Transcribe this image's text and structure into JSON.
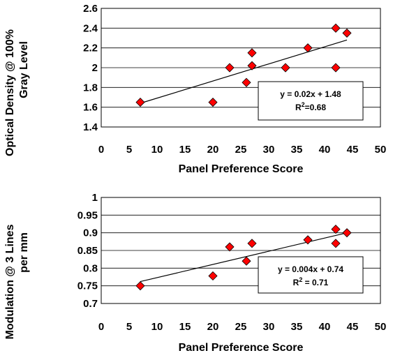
{
  "chart_data": [
    {
      "type": "scatter",
      "xlabel": "Panel Preference Score",
      "ylabel_lines": [
        "Optical Density @ 100%",
        "Gray Level"
      ],
      "xlim": [
        0,
        50
      ],
      "ylim": [
        1.4,
        2.6
      ],
      "x_ticks": [
        "0",
        "5",
        "10",
        "15",
        "20",
        "25",
        "30",
        "35",
        "40",
        "45",
        "50"
      ],
      "y_ticks": [
        "1.4",
        "1.6",
        "1.8",
        "2",
        "2.2",
        "2.4",
        "2.6"
      ],
      "grid": "horizontal",
      "series": [
        {
          "marker": "diamond",
          "color": "#ff0000",
          "points": [
            {
              "x": 7,
              "y": 1.65
            },
            {
              "x": 20,
              "y": 1.65
            },
            {
              "x": 23,
              "y": 2.0
            },
            {
              "x": 26,
              "y": 1.85
            },
            {
              "x": 27,
              "y": 2.15
            },
            {
              "x": 27,
              "y": 2.02
            },
            {
              "x": 33,
              "y": 2.0
            },
            {
              "x": 37,
              "y": 2.2
            },
            {
              "x": 42,
              "y": 2.4
            },
            {
              "x": 42,
              "y": 2.0
            },
            {
              "x": 44,
              "y": 2.35
            }
          ]
        }
      ],
      "trendline": {
        "x": [
          7,
          44
        ],
        "y": [
          1.64,
          2.28
        ]
      },
      "annotation": {
        "equation": "y = 0.02x + 1.48",
        "r2_prefix": "R",
        "r2_sup": "2",
        "r2_value": "=0.68"
      }
    },
    {
      "type": "scatter",
      "xlabel": "Panel Preference Score",
      "ylabel_lines": [
        "Modulation @ 3 Lines",
        "per mm"
      ],
      "xlim": [
        0,
        50
      ],
      "ylim": [
        0.7,
        1.0
      ],
      "x_ticks": [
        "0",
        "5",
        "10",
        "15",
        "20",
        "25",
        "30",
        "35",
        "40",
        "45",
        "50"
      ],
      "y_ticks": [
        "0.7",
        "0.75",
        "0.8",
        "0.85",
        "0.9",
        "0.95",
        "1"
      ],
      "grid": "horizontal",
      "series": [
        {
          "marker": "diamond",
          "color": "#ff0000",
          "points": [
            {
              "x": 7,
              "y": 0.75
            },
            {
              "x": 20,
              "y": 0.778
            },
            {
              "x": 23,
              "y": 0.86
            },
            {
              "x": 26,
              "y": 0.82
            },
            {
              "x": 27,
              "y": 0.87
            },
            {
              "x": 37,
              "y": 0.88
            },
            {
              "x": 42,
              "y": 0.91
            },
            {
              "x": 42,
              "y": 0.87
            },
            {
              "x": 44,
              "y": 0.9
            }
          ]
        }
      ],
      "trendline": {
        "x": [
          7,
          44
        ],
        "y": [
          0.762,
          0.9
        ]
      },
      "annotation": {
        "equation": "y = 0.004x + 0.74",
        "r2_prefix": "R",
        "r2_sup": "2",
        "r2_value": " = 0.71"
      }
    }
  ]
}
